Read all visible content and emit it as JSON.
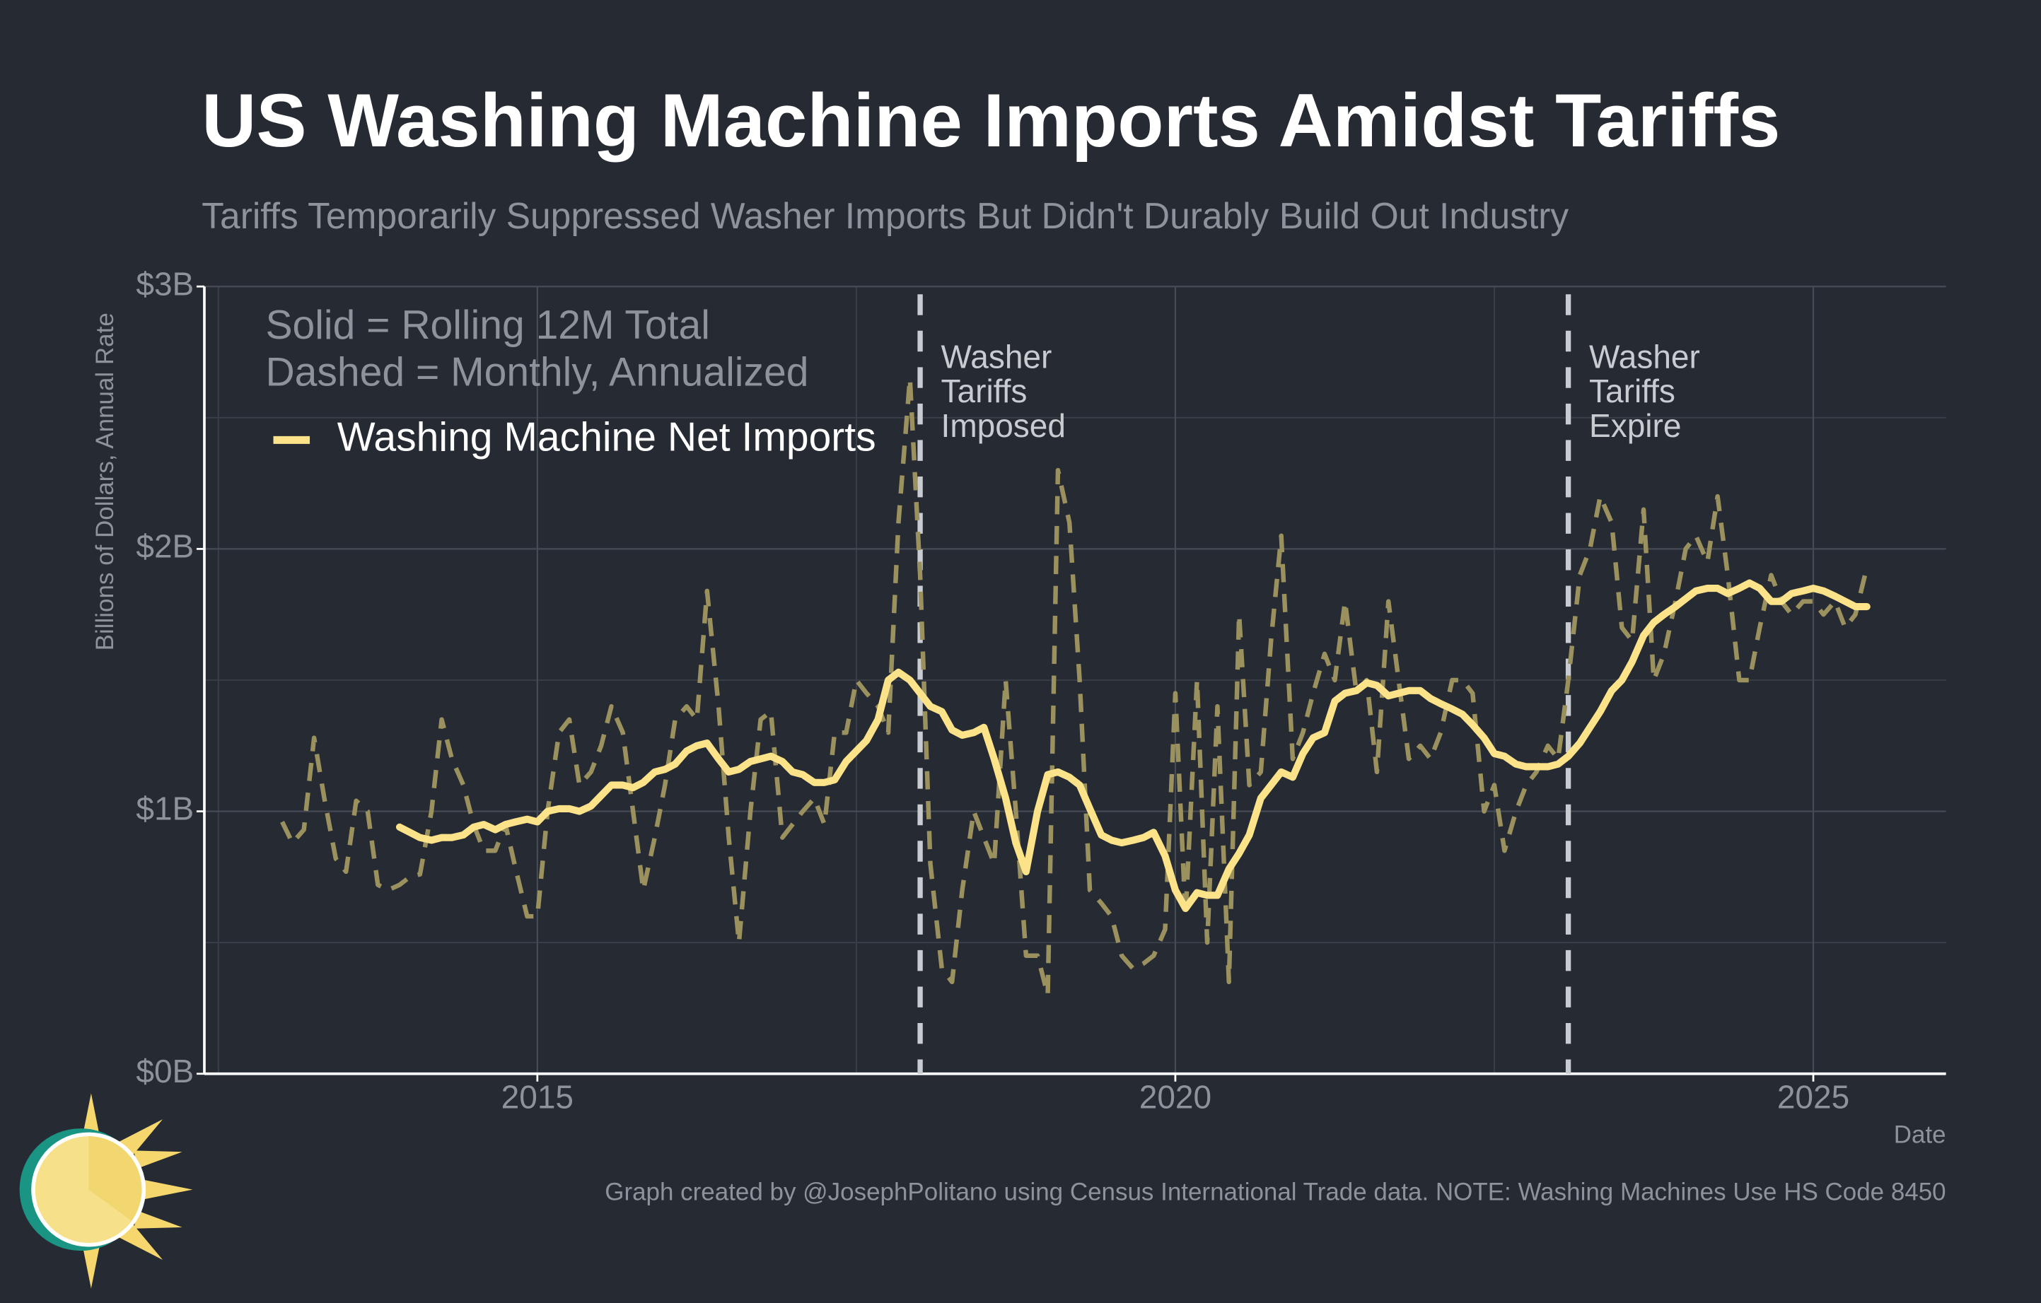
{
  "chart_data": {
    "type": "line",
    "title": "US Washing Machine Imports Amidst Tariffs",
    "subtitle": "Tariffs Temporarily Suppressed Washer Imports But Didn't Durably Build Out Industry",
    "y_label": "Billions of Dollars, Annual Rate",
    "x_label": "Date",
    "notes": [
      "Solid = Rolling 12M Total",
      "Dashed = Monthly, Annualized"
    ],
    "footer": "Graph created by @JosephPolitano using Census International Trade data. NOTE: Washing Machines Use HS Code 8450",
    "xlim": [
      2012.39,
      2026.04
    ],
    "xticks": [
      2015,
      2020,
      2025
    ],
    "minor_xticks": [
      2012.5,
      2017.5,
      2022.5
    ],
    "ylim": [
      0,
      3
    ],
    "yticks": [
      {
        "value": 0,
        "label": "$0B"
      },
      {
        "value": 1,
        "label": "$1B"
      },
      {
        "value": 2,
        "label": "$2B"
      },
      {
        "value": 3,
        "label": "$3B"
      }
    ],
    "minor_yticks": [
      0.5,
      1.5,
      2.5
    ],
    "grid": true,
    "legend": "top-left",
    "annotations": [
      {
        "x": 2018,
        "lines": [
          "Washer",
          "Tariffs",
          "Imposed"
        ]
      },
      {
        "x": 2023.08,
        "lines": [
          "Washer",
          "Tariffs",
          "Expire"
        ]
      }
    ],
    "x": [
      2013,
      2013.08,
      2013.17,
      2013.25,
      2013.33,
      2013.42,
      2013.5,
      2013.58,
      2013.67,
      2013.75,
      2013.83,
      2013.92,
      2014,
      2014.08,
      2014.17,
      2014.25,
      2014.33,
      2014.42,
      2014.5,
      2014.58,
      2014.67,
      2014.75,
      2014.83,
      2014.92,
      2015,
      2015.08,
      2015.17,
      2015.25,
      2015.33,
      2015.42,
      2015.5,
      2015.58,
      2015.67,
      2015.75,
      2015.83,
      2015.92,
      2016,
      2016.08,
      2016.17,
      2016.25,
      2016.33,
      2016.42,
      2016.5,
      2016.58,
      2016.67,
      2016.75,
      2016.83,
      2016.92,
      2017,
      2017.08,
      2017.17,
      2017.25,
      2017.33,
      2017.42,
      2017.5,
      2017.58,
      2017.67,
      2017.75,
      2017.83,
      2017.92,
      2018,
      2018.08,
      2018.17,
      2018.25,
      2018.33,
      2018.42,
      2018.5,
      2018.58,
      2018.67,
      2018.75,
      2018.83,
      2018.92,
      2019,
      2019.08,
      2019.17,
      2019.25,
      2019.33,
      2019.42,
      2019.5,
      2019.58,
      2019.67,
      2019.75,
      2019.83,
      2019.92,
      2020,
      2020.08,
      2020.17,
      2020.25,
      2020.33,
      2020.42,
      2020.5,
      2020.58,
      2020.67,
      2020.75,
      2020.83,
      2020.92,
      2021,
      2021.08,
      2021.17,
      2021.25,
      2021.33,
      2021.42,
      2021.5,
      2021.58,
      2021.67,
      2021.75,
      2021.83,
      2021.92,
      2022,
      2022.08,
      2022.17,
      2022.25,
      2022.33,
      2022.42,
      2022.5,
      2022.58,
      2022.67,
      2022.75,
      2022.83,
      2022.92,
      2023,
      2023.08,
      2023.17,
      2023.25,
      2023.33,
      2023.42,
      2023.5,
      2023.58,
      2023.67,
      2023.75,
      2023.83,
      2023.92,
      2024,
      2024.08,
      2024.17,
      2024.25,
      2024.33,
      2024.42,
      2024.5,
      2024.58,
      2024.67,
      2024.75,
      2024.83,
      2024.92,
      2025,
      2025.08,
      2025.17,
      2025.25,
      2025.33,
      2025.42
    ],
    "series": [
      {
        "name": "Washing Machine Net Imports",
        "color": "#fce38a",
        "style": "solid",
        "values": [
          null,
          null,
          null,
          null,
          null,
          null,
          null,
          null,
          null,
          null,
          null,
          0.94,
          0.92,
          0.9,
          0.89,
          0.9,
          0.9,
          0.91,
          0.94,
          0.95,
          0.93,
          0.95,
          0.96,
          0.97,
          0.96,
          1.0,
          1.01,
          1.01,
          1.0,
          1.02,
          1.06,
          1.1,
          1.1,
          1.09,
          1.11,
          1.15,
          1.16,
          1.18,
          1.23,
          1.25,
          1.26,
          1.2,
          1.15,
          1.16,
          1.19,
          1.2,
          1.21,
          1.19,
          1.15,
          1.14,
          1.11,
          1.11,
          1.12,
          1.19,
          1.23,
          1.27,
          1.35,
          1.5,
          1.53,
          1.5,
          1.45,
          1.4,
          1.38,
          1.31,
          1.29,
          1.3,
          1.32,
          1.2,
          1.05,
          0.88,
          0.77,
          1.0,
          1.14,
          1.15,
          1.13,
          1.1,
          1.01,
          0.91,
          0.89,
          0.88,
          0.89,
          0.9,
          0.92,
          0.83,
          0.7,
          0.63,
          0.69,
          0.68,
          0.68,
          0.78,
          0.84,
          0.91,
          1.05,
          1.1,
          1.15,
          1.13,
          1.22,
          1.28,
          1.3,
          1.42,
          1.45,
          1.46,
          1.49,
          1.48,
          1.44,
          1.45,
          1.46,
          1.46,
          1.43,
          1.41,
          1.39,
          1.37,
          1.33,
          1.28,
          1.22,
          1.21,
          1.18,
          1.17,
          1.17,
          1.17,
          1.18,
          1.21,
          1.26,
          1.32,
          1.38,
          1.46,
          1.5,
          1.57,
          1.67,
          1.72,
          1.75,
          1.78,
          1.81,
          1.84,
          1.85,
          1.85,
          1.83,
          1.85,
          1.87,
          1.85,
          1.8,
          1.8,
          1.83,
          1.84,
          1.85,
          1.84,
          1.82,
          1.8,
          1.78,
          1.78
        ]
      },
      {
        "color": "#9b915e",
        "style": "dashed",
        "values": [
          0.96,
          0.88,
          0.93,
          1.28,
          1.05,
          0.82,
          0.77,
          1.04,
          1.0,
          0.72,
          0.7,
          0.72,
          0.75,
          0.76,
          1.0,
          1.35,
          1.2,
          1.1,
          0.95,
          0.85,
          0.85,
          0.95,
          0.78,
          0.6,
          0.6,
          1.0,
          1.3,
          1.35,
          1.1,
          1.15,
          1.25,
          1.4,
          1.3,
          1.0,
          0.7,
          0.9,
          1.1,
          1.35,
          1.4,
          1.35,
          1.84,
          1.4,
          0.9,
          0.5,
          1.0,
          1.35,
          1.38,
          0.9,
          0.95,
          1.0,
          1.05,
          0.95,
          1.3,
          1.3,
          1.5,
          1.45,
          1.4,
          1.3,
          2.1,
          2.65,
          1.9,
          0.8,
          0.4,
          0.35,
          0.7,
          1.0,
          0.9,
          0.8,
          1.5,
          1.0,
          0.45,
          0.45,
          0.3,
          2.3,
          2.1,
          1.5,
          0.7,
          0.65,
          0.6,
          0.45,
          0.4,
          0.42,
          0.45,
          0.55,
          1.45,
          0.6,
          1.5,
          0.5,
          1.4,
          0.35,
          1.75,
          1.1,
          1.15,
          1.65,
          2.05,
          1.2,
          1.3,
          1.45,
          1.6,
          1.5,
          1.8,
          1.45,
          1.5,
          1.15,
          1.8,
          1.5,
          1.2,
          1.25,
          1.2,
          1.3,
          1.5,
          1.5,
          1.45,
          1.0,
          1.1,
          0.85,
          1.0,
          1.1,
          1.15,
          1.25,
          1.2,
          1.5,
          1.9,
          2.0,
          2.2,
          2.1,
          1.7,
          1.65,
          2.15,
          1.5,
          1.6,
          1.8,
          2.0,
          2.05,
          1.95,
          2.2,
          1.9,
          1.5,
          1.5,
          1.7,
          1.9,
          1.8,
          1.75,
          1.8,
          1.8,
          1.75,
          1.8,
          1.7,
          1.75,
          1.93
        ]
      }
    ]
  }
}
